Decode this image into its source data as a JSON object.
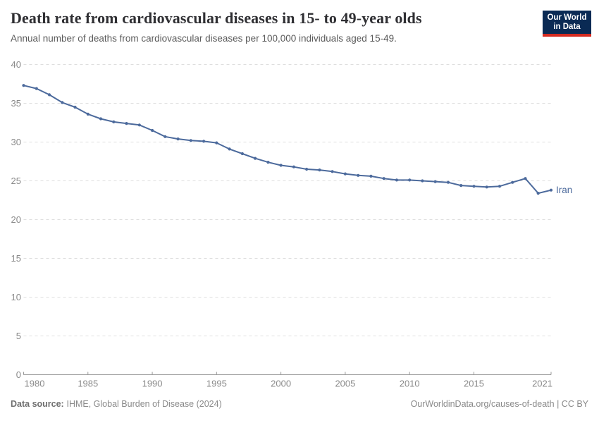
{
  "header": {
    "title": "Death rate from cardiovascular diseases in 15- to 49-year olds",
    "subtitle": "Annual number of deaths from cardiovascular diseases per 100,000 individuals aged 15-49.",
    "logo": {
      "line1": "Our World",
      "line2": "in Data"
    }
  },
  "chart_data": {
    "type": "line",
    "title": "Death rate from cardiovascular diseases in 15- to 49-year olds",
    "xlabel": "",
    "ylabel": "",
    "xlim": [
      1980,
      2021
    ],
    "ylim": [
      0,
      40
    ],
    "xticks": [
      1980,
      1985,
      1990,
      1995,
      2000,
      2005,
      2010,
      2015,
      2021
    ],
    "yticks": [
      0,
      5,
      10,
      15,
      20,
      25,
      30,
      35,
      40
    ],
    "grid": "horizontal-dashed",
    "legend_position": "end-of-line-label",
    "x": [
      1980,
      1981,
      1982,
      1983,
      1984,
      1985,
      1986,
      1987,
      1988,
      1989,
      1990,
      1991,
      1992,
      1993,
      1994,
      1995,
      1996,
      1997,
      1998,
      1999,
      2000,
      2001,
      2002,
      2003,
      2004,
      2005,
      2006,
      2007,
      2008,
      2009,
      2010,
      2011,
      2012,
      2013,
      2014,
      2015,
      2016,
      2017,
      2018,
      2019,
      2020,
      2021
    ],
    "series": [
      {
        "name": "Iran",
        "values": [
          37.3,
          36.9,
          36.1,
          35.1,
          34.5,
          33.6,
          33.0,
          32.6,
          32.4,
          32.2,
          31.5,
          30.7,
          30.4,
          30.2,
          30.1,
          29.9,
          29.1,
          28.5,
          27.9,
          27.4,
          27.0,
          26.8,
          26.5,
          26.4,
          26.2,
          25.9,
          25.7,
          25.6,
          25.3,
          25.1,
          25.1,
          25.0,
          24.9,
          24.8,
          24.4,
          24.3,
          24.2,
          24.3,
          24.8,
          25.3,
          23.4,
          23.8
        ]
      }
    ]
  },
  "footer": {
    "source_label": "Data source:",
    "source_text": "IHME, Global Burden of Disease (2024)",
    "credit": "OurWorldinData.org/causes-of-death | CC BY"
  },
  "colors": {
    "line": "#4c6a9c",
    "logo_navy": "#0a2a54",
    "logo_red": "#d42b21",
    "title_text": "#2f2f33",
    "subtitle_text": "#5b5b5b",
    "axis_text": "#8a8a8a",
    "grid_line": "#dedede",
    "axis_line": "#999999",
    "footer_text": "#8a8a8a",
    "footer_label": "#6f6f6f"
  }
}
